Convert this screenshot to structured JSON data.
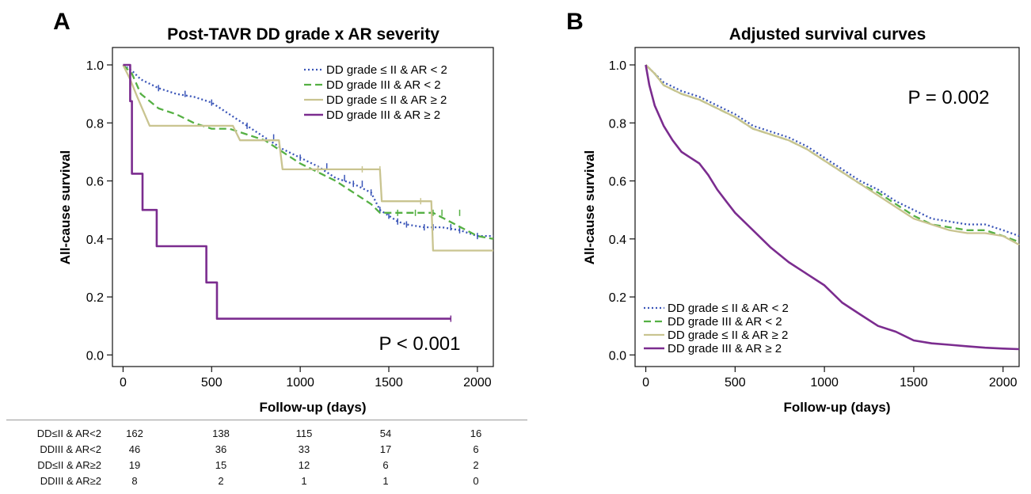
{
  "panels": [
    {
      "letter": "A",
      "p_value": "P < 0.001",
      "chart_data": {
        "type": "line",
        "title": "Post-TAVR DD grade x AR severity",
        "xlabel": "Follow-up (days)",
        "ylabel": "All-cause survival",
        "xlim": [
          -60,
          2090
        ],
        "ylim": [
          -0.04,
          1.06
        ],
        "xticks": [
          0,
          500,
          1000,
          1500,
          2000
        ],
        "xtick_labels": [
          "0",
          "500",
          "1000",
          "1500",
          "2000"
        ],
        "yticks": [
          0,
          0.2,
          0.4,
          0.6,
          0.8,
          1.0
        ],
        "ytick_labels": [
          "0.0",
          "0.2",
          "0.4",
          "0.6",
          "0.8",
          "1.0"
        ],
        "grid": false,
        "legend_position": "top-right",
        "series": [
          {
            "name": "DD grade ≤ II & AR < 2",
            "color": "#3a55b8",
            "dash": "dotted",
            "x": [
              0,
              50,
              100,
              200,
              300,
              400,
              500,
              600,
              700,
              800,
              900,
              1000,
              1100,
              1200,
              1300,
              1400,
              1450,
              1500,
              1550,
              1600,
              1700,
              1800,
              1900,
              2000,
              2090
            ],
            "y": [
              1.0,
              0.98,
              0.95,
              0.92,
              0.9,
              0.89,
              0.87,
              0.83,
              0.79,
              0.75,
              0.71,
              0.68,
              0.65,
              0.61,
              0.59,
              0.56,
              0.5,
              0.48,
              0.46,
              0.45,
              0.44,
              0.44,
              0.43,
              0.41,
              0.41
            ],
            "censor_x": [
              200,
              350,
              500,
              700,
              850,
              1000,
              1150,
              1250,
              1300,
              1350,
              1400,
              1450,
              1500,
              1550,
              1600,
              1700,
              1750,
              1850,
              1900,
              2000
            ]
          },
          {
            "name": "DD grade III & AR < 2",
            "color": "#55b043",
            "dash": "dashed",
            "x": [
              0,
              50,
              100,
              200,
              300,
              400,
              500,
              600,
              700,
              800,
              1000,
              1200,
              1300,
              1400,
              1450,
              1500,
              1700,
              1750,
              2000,
              2090
            ],
            "y": [
              1.0,
              0.97,
              0.9,
              0.85,
              0.83,
              0.8,
              0.78,
              0.78,
              0.76,
              0.74,
              0.66,
              0.6,
              0.56,
              0.52,
              0.49,
              0.49,
              0.49,
              0.49,
              0.41,
              0.4
            ],
            "censor_x": [
              1550,
              1650,
              1750,
              1800,
              1900
            ]
          },
          {
            "name": "DD grade ≤ II & AR ≥ 2",
            "color": "#c9c490",
            "dash": "solid",
            "x": [
              0,
              40,
              80,
              150,
              300,
              500,
              620,
              660,
              880,
              900,
              1300,
              1450,
              1460,
              1740,
              1750,
              2090
            ],
            "y": [
              1.0,
              0.95,
              0.89,
              0.79,
              0.79,
              0.79,
              0.79,
              0.74,
              0.74,
              0.64,
              0.64,
              0.64,
              0.53,
              0.53,
              0.36,
              0.36
            ],
            "censor_x": [
              1100,
              1350,
              1450,
              1680
            ]
          },
          {
            "name": "DD grade III & AR ≥ 2",
            "color": "#7b2c8f",
            "dash": "solid",
            "x": [
              0,
              40,
              40,
              50,
              50,
              110,
              110,
              190,
              190,
              470,
              470,
              530,
              530,
              1850
            ],
            "y": [
              1.0,
              1.0,
              0.875,
              0.875,
              0.625,
              0.625,
              0.5,
              0.5,
              0.375,
              0.375,
              0.25,
              0.25,
              0.125,
              0.125
            ],
            "censor_x": [
              1850
            ]
          }
        ]
      }
    },
    {
      "letter": "B",
      "p_value": "P = 0.002",
      "chart_data": {
        "type": "line",
        "title": "Adjusted survival curves",
        "xlabel": "Follow-up (days)",
        "ylabel": "All-cause survival",
        "xlim": [
          -60,
          2090
        ],
        "ylim": [
          -0.04,
          1.06
        ],
        "xticks": [
          0,
          500,
          1000,
          1500,
          2000
        ],
        "xtick_labels": [
          "0",
          "500",
          "1000",
          "1500",
          "2000"
        ],
        "yticks": [
          0,
          0.2,
          0.4,
          0.6,
          0.8,
          1.0
        ],
        "ytick_labels": [
          "0.0",
          "0.2",
          "0.4",
          "0.6",
          "0.8",
          "1.0"
        ],
        "grid": false,
        "legend_position": "bottom-left",
        "series": [
          {
            "name": "DD grade ≤ II & AR < 2",
            "color": "#3a55b8",
            "dash": "dotted",
            "x": [
              0,
              50,
              100,
              200,
              300,
              400,
              500,
              600,
              700,
              800,
              900,
              1000,
              1100,
              1200,
              1300,
              1400,
              1500,
              1600,
              1700,
              1800,
              1900,
              2000,
              2090
            ],
            "y": [
              1.0,
              0.97,
              0.94,
              0.91,
              0.89,
              0.86,
              0.83,
              0.79,
              0.77,
              0.75,
              0.72,
              0.68,
              0.64,
              0.6,
              0.57,
              0.53,
              0.5,
              0.47,
              0.46,
              0.45,
              0.45,
              0.43,
              0.41
            ]
          },
          {
            "name": "DD grade III & AR < 2",
            "color": "#55b043",
            "dash": "dashed",
            "x": [
              0,
              50,
              100,
              200,
              300,
              400,
              500,
              600,
              700,
              800,
              900,
              1000,
              1100,
              1200,
              1300,
              1400,
              1500,
              1600,
              1700,
              1800,
              1900,
              2000,
              2090
            ],
            "y": [
              1.0,
              0.97,
              0.93,
              0.9,
              0.88,
              0.85,
              0.82,
              0.78,
              0.76,
              0.74,
              0.71,
              0.67,
              0.63,
              0.59,
              0.56,
              0.52,
              0.48,
              0.45,
              0.44,
              0.43,
              0.43,
              0.41,
              0.39
            ]
          },
          {
            "name": "DD grade ≤ II & AR ≥ 2",
            "color": "#c9c490",
            "dash": "solid",
            "x": [
              0,
              50,
              100,
              200,
              300,
              400,
              500,
              600,
              700,
              800,
              900,
              1000,
              1100,
              1200,
              1300,
              1400,
              1500,
              1600,
              1700,
              1800,
              1900,
              2000,
              2090
            ],
            "y": [
              1.0,
              0.97,
              0.93,
              0.9,
              0.88,
              0.85,
              0.82,
              0.78,
              0.76,
              0.74,
              0.71,
              0.67,
              0.63,
              0.59,
              0.55,
              0.51,
              0.47,
              0.45,
              0.43,
              0.42,
              0.42,
              0.41,
              0.38
            ]
          },
          {
            "name": "DD grade III & AR ≥ 2",
            "color": "#7b2c8f",
            "dash": "solid",
            "x": [
              0,
              20,
              50,
              100,
              150,
              200,
              250,
              300,
              350,
              400,
              450,
              500,
              600,
              700,
              800,
              900,
              1000,
              1100,
              1200,
              1300,
              1400,
              1500,
              1600,
              1700,
              1800,
              1900,
              2000,
              2090
            ],
            "y": [
              1.0,
              0.93,
              0.86,
              0.79,
              0.74,
              0.7,
              0.68,
              0.66,
              0.62,
              0.57,
              0.53,
              0.49,
              0.43,
              0.37,
              0.32,
              0.28,
              0.24,
              0.18,
              0.14,
              0.1,
              0.08,
              0.05,
              0.04,
              0.035,
              0.03,
              0.025,
              0.022,
              0.02
            ]
          }
        ]
      }
    }
  ],
  "risk_table": {
    "rows": [
      {
        "label": "DD≤II & AR<2",
        "values": [
          "162",
          "138",
          "115",
          "54",
          "16"
        ]
      },
      {
        "label": "DDIII & AR<2",
        "values": [
          "46",
          "36",
          "33",
          "17",
          "6"
        ]
      },
      {
        "label": "DD≤II & AR≥2",
        "values": [
          "19",
          "15",
          "12",
          "6",
          "2"
        ]
      },
      {
        "label": "DDIII & AR≥2",
        "values": [
          "8",
          "2",
          "1",
          "1",
          "0"
        ]
      }
    ]
  }
}
